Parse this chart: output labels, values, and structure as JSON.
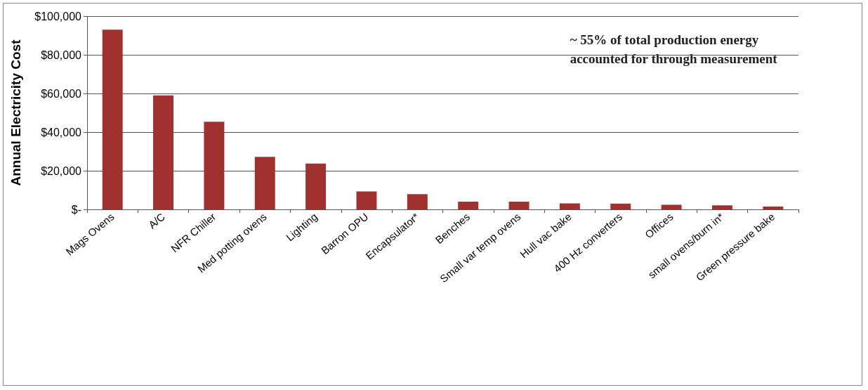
{
  "chart_data": {
    "type": "bar",
    "ylabel": "Annual Electricity Cost",
    "categories": [
      "Mags Ovens",
      "A/C",
      "NFR Chiller",
      "Med potting ovens",
      "Lighting",
      "Barron OPU",
      "Encapsulator*",
      "Benches",
      "Small var temp ovens",
      "Hull vac bake",
      "400 Hz converters",
      "Offices",
      "small ovens/burn in*",
      "Green pressure bake"
    ],
    "values": [
      93000,
      59000,
      45400,
      27200,
      23700,
      9300,
      7900,
      4000,
      4000,
      3100,
      3000,
      2400,
      2100,
      1500
    ],
    "color": "#a0312e",
    "ylim": [
      0,
      100000
    ],
    "yticks": [
      {
        "value": 0,
        "label": "$-"
      },
      {
        "value": 20000,
        "label": "$20,000"
      },
      {
        "value": 40000,
        "label": "$40,000"
      },
      {
        "value": 60000,
        "label": "$60,000"
      },
      {
        "value": 80000,
        "label": "$80,000"
      },
      {
        "value": 100000,
        "label": "$100,000"
      }
    ],
    "grid": "y",
    "annotations": [
      "~ 55% of total production energy\naccounted for through measurement"
    ]
  }
}
